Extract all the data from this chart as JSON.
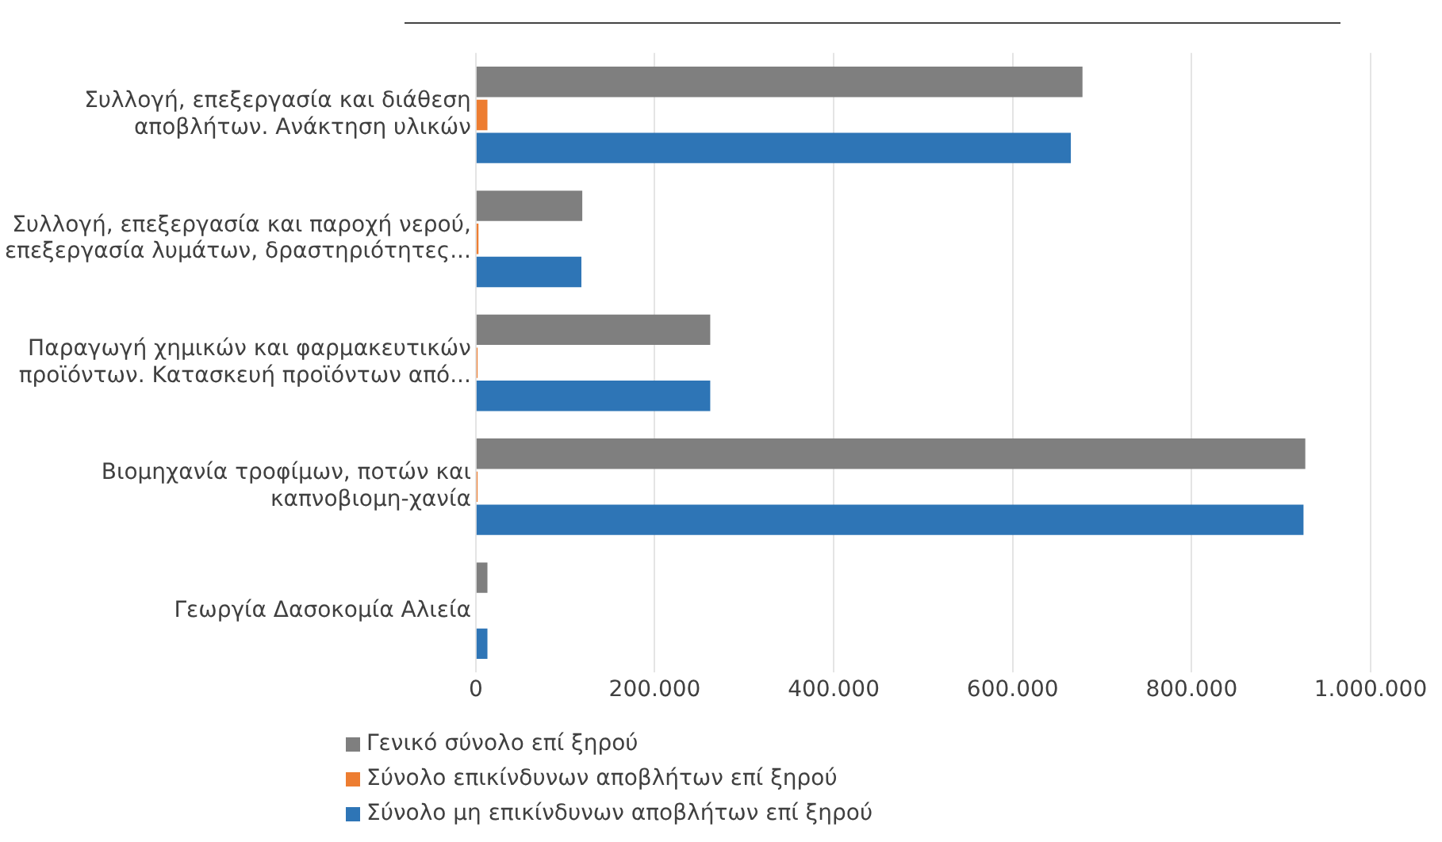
{
  "chart_data": {
    "type": "bar",
    "orientation": "horizontal",
    "categories": [
      "Συλλογή, επεξεργασία και διάθεση αποβλήτων. Ανάκτηση υλικών",
      "Συλλογή, επεξεργασία και παροχή νερού, επεξεργασία λυμάτων, δραστηριότητες...",
      "Παραγωγή χημικών και φαρμακευτικών προϊόντων. Κατασκευή προϊόντων από...",
      "Βιομηχανία τροφίμων, ποτών και καπνοβιομη-χανία",
      "Γεωργία Δασοκομία Αλιεία"
    ],
    "series": [
      {
        "name": "Γενικό σύνολο επί ξηρού",
        "color": "#7f7f7f",
        "values": [
          678000,
          119000,
          262000,
          927000,
          13000
        ]
      },
      {
        "name": "Σύνολο επικίνδυνων αποβλήτων επί ξηρού",
        "color": "#ed7d31",
        "values": [
          13000,
          3000,
          2000,
          2000,
          null
        ]
      },
      {
        "name": "Σύνολο μη επικίνδυνων αποβλήτων επί ξηρού",
        "color": "#2e75b6",
        "values": [
          665000,
          118000,
          262000,
          925000,
          13000
        ]
      }
    ],
    "xlim": [
      0,
      1000000
    ],
    "xticks": [
      0,
      {
        "value": 200000,
        "label": "200.000"
      },
      {
        "value": 400000,
        "label": "400.000"
      },
      {
        "value": 600000,
        "label": "600.000"
      },
      {
        "value": 800000,
        "label": "800.000"
      },
      {
        "value": 1000000,
        "label": "1.000.000"
      }
    ],
    "grid": "x",
    "legend": "bottom"
  }
}
